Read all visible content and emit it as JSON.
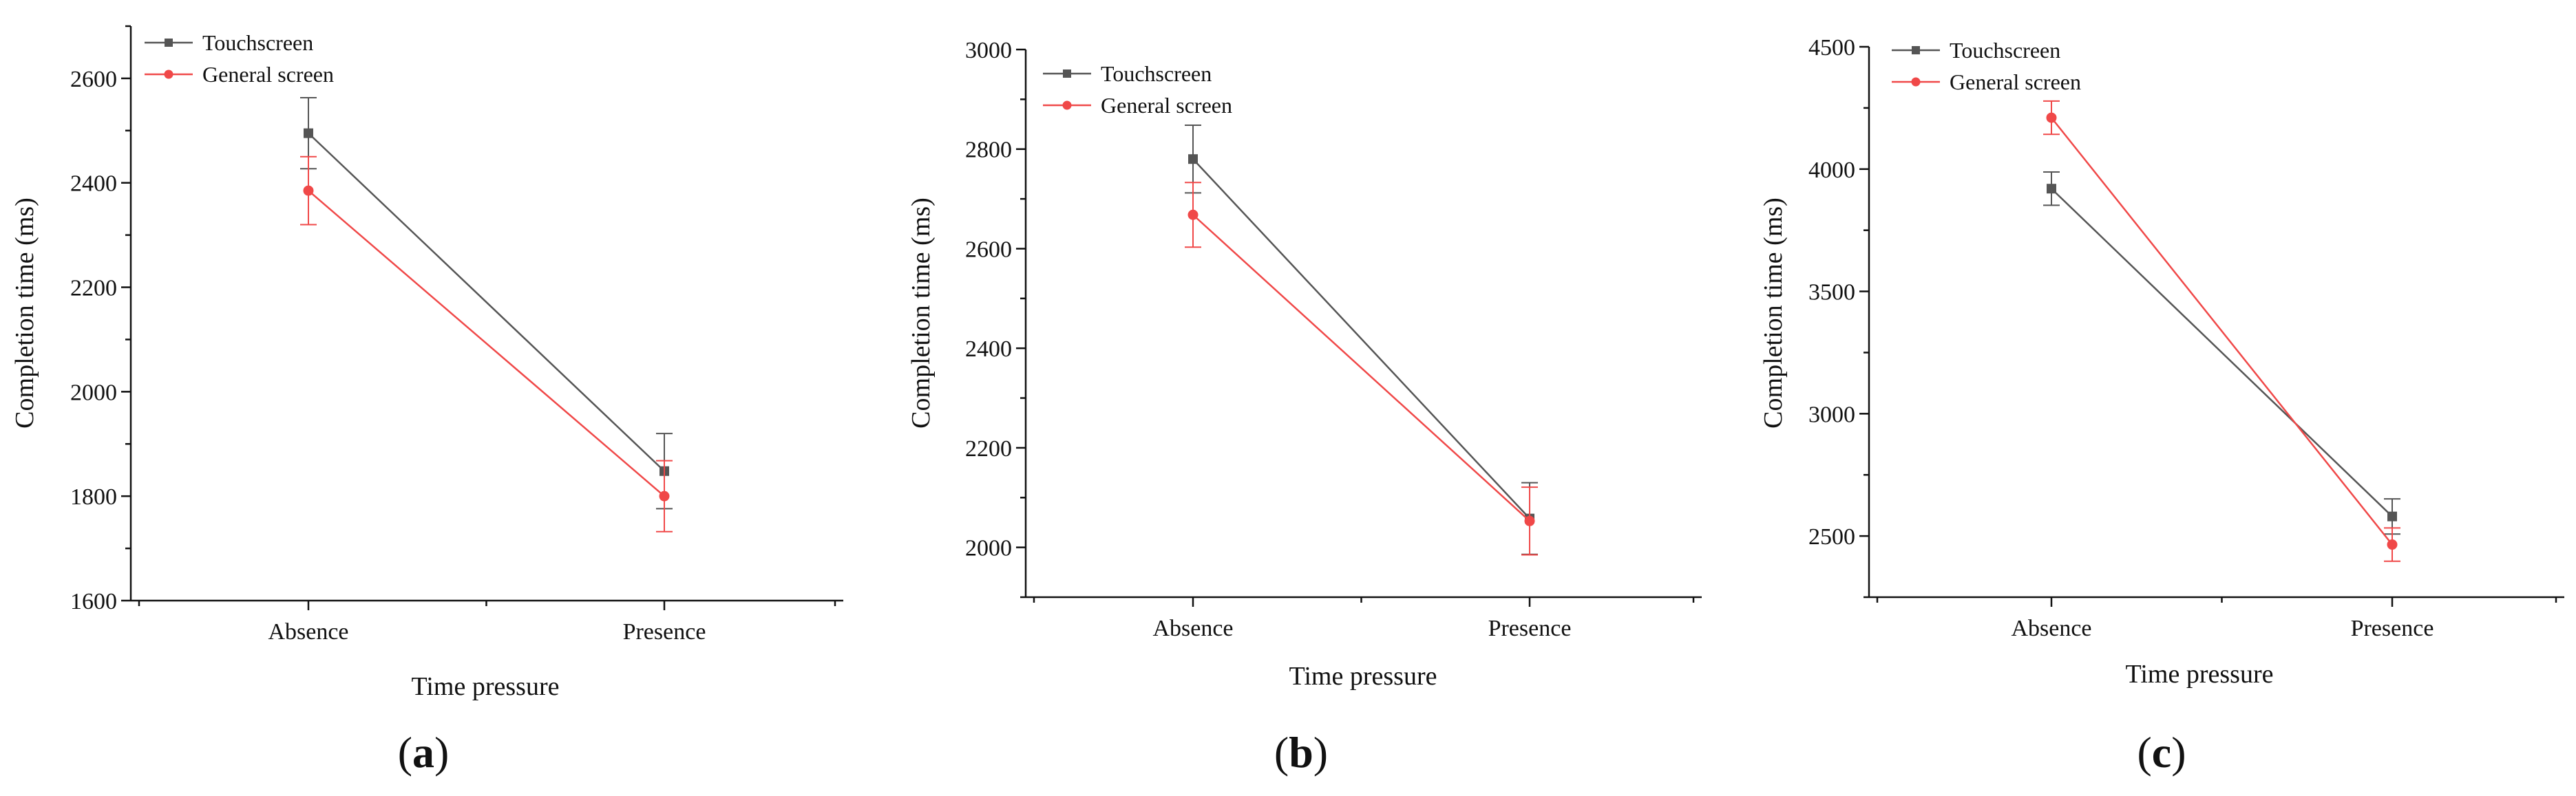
{
  "colors": {
    "touchscreen": "#555555",
    "general": "#f04848",
    "axis": "#111111"
  },
  "chart_data": [
    {
      "type": "line",
      "panel": "a",
      "xlabel": "Time pressure",
      "ylabel": "Completion time (ms)",
      "categories": [
        "Absence",
        "Presence"
      ],
      "ylim": [
        1600,
        2700
      ],
      "yticks": [
        1600,
        1800,
        2000,
        2200,
        2400,
        2600
      ],
      "legend_position": "top-left",
      "series": [
        {
          "name": "Touchscreen",
          "marker": "square",
          "values": [
            2495,
            1848
          ],
          "errors": [
            68,
            72
          ]
        },
        {
          "name": "General screen",
          "marker": "circle",
          "values": [
            2385,
            1800
          ],
          "errors": [
            65,
            68
          ]
        }
      ]
    },
    {
      "type": "line",
      "panel": "b",
      "xlabel": "Time pressure",
      "ylabel": "Completion time (ms)",
      "categories": [
        "Absence",
        "Presence"
      ],
      "ylim": [
        1900,
        3000
      ],
      "yticks": [
        2000,
        2200,
        2400,
        2600,
        2800,
        3000
      ],
      "legend_position": "top-left",
      "series": [
        {
          "name": "Touchscreen",
          "marker": "square",
          "values": [
            2780,
            2058
          ],
          "errors": [
            68,
            72
          ]
        },
        {
          "name": "General screen",
          "marker": "circle",
          "values": [
            2668,
            2053
          ],
          "errors": [
            65,
            68
          ]
        }
      ]
    },
    {
      "type": "line",
      "panel": "c",
      "xlabel": "Time pressure",
      "ylabel": "Completion time (ms)",
      "categories": [
        "Absence",
        "Presence"
      ],
      "ylim": [
        2250,
        4500
      ],
      "yticks": [
        2500,
        3000,
        3500,
        4000,
        4500
      ],
      "legend_position": "top-left",
      "series": [
        {
          "name": "Touchscreen",
          "marker": "square",
          "values": [
            3920,
            2580
          ],
          "errors": [
            68,
            72
          ]
        },
        {
          "name": "General screen",
          "marker": "circle",
          "values": [
            4210,
            2465
          ],
          "errors": [
            68,
            68
          ]
        }
      ]
    }
  ]
}
